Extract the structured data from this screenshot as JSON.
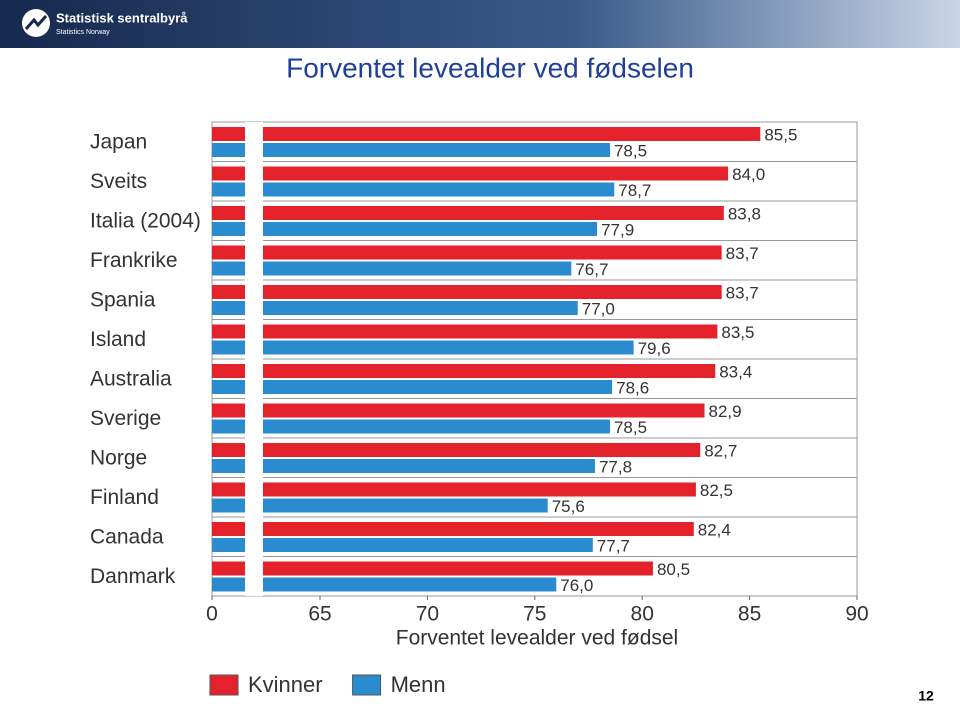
{
  "header": {
    "logo": "Statistisk sentralbyrå",
    "logo_sub": "Statistics Norway"
  },
  "slide_title": "Forventet levealder ved fødselen",
  "page_number": "12",
  "chart_data": {
    "type": "bar",
    "orientation": "horizontal",
    "x_label": "Forventet levealder ved fødsel",
    "categories": [
      "Japan",
      "Sveits",
      "Italia (2004)",
      "Frankrike",
      "Spania",
      "Island",
      "Australia",
      "Sverige",
      "Norge",
      "Finland",
      "Canada",
      "Danmark"
    ],
    "series": [
      {
        "name": "Kvinner",
        "color": "#e3222b",
        "values": [
          85.5,
          84.0,
          83.8,
          83.7,
          83.7,
          83.5,
          83.4,
          82.9,
          82.7,
          82.5,
          82.4,
          80.5
        ],
        "value_labels": [
          "85,5",
          "84,0",
          "83,8",
          "83,7",
          "83,7",
          "83,5",
          "83,4",
          "82,9",
          "82,7",
          "82,5",
          "82,4",
          "80,5"
        ]
      },
      {
        "name": "Menn",
        "color": "#2a8ccf",
        "values": [
          78.5,
          78.7,
          77.9,
          76.7,
          77.0,
          79.6,
          78.6,
          78.5,
          77.8,
          75.6,
          77.7,
          76.0
        ],
        "value_labels": [
          "78,5",
          "78,7",
          "77,9",
          "76,7",
          "77,0",
          "79,6",
          "78,6",
          "78,5",
          "77,8",
          "75,6",
          "77,7",
          "76,0"
        ]
      }
    ],
    "xlim": [
      0,
      90
    ],
    "xticks": [
      0,
      65,
      70,
      75,
      80,
      85,
      90
    ],
    "broken_axis": true,
    "legend": "bottom"
  }
}
